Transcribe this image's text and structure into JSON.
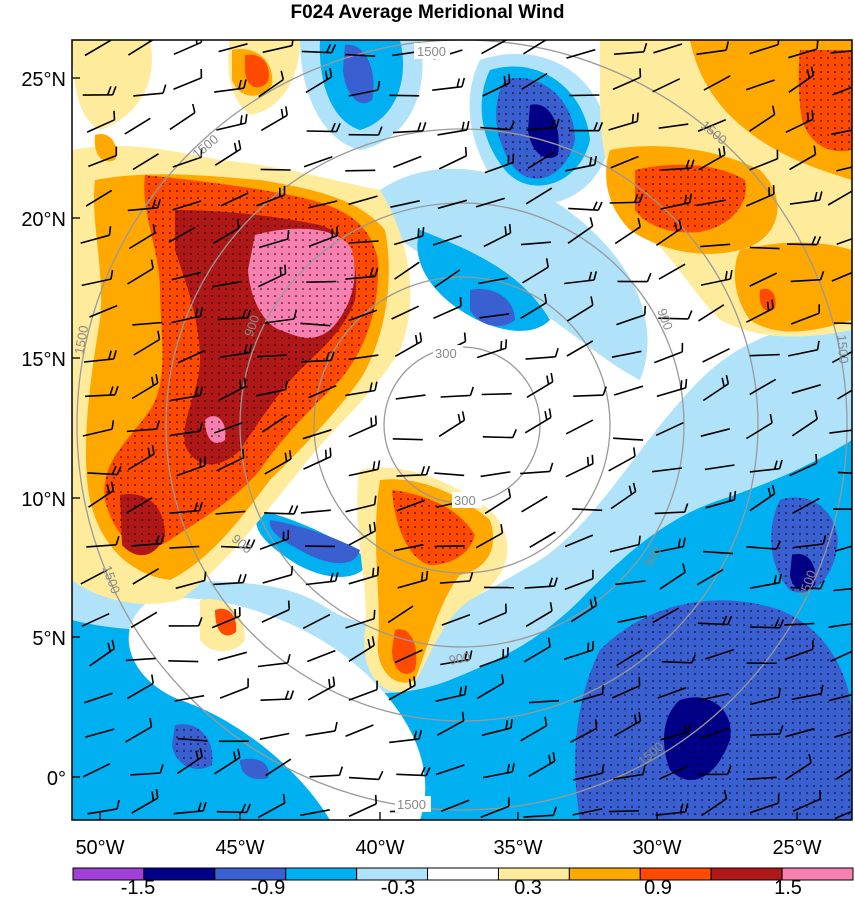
{
  "title": "F024 Average Meridional Wind",
  "lat_labels": [
    "0°",
    "5°N",
    "10°N",
    "15°N",
    "20°N",
    "25°N"
  ],
  "lon_labels": [
    "50°W",
    "45°W",
    "40°W",
    "35°W",
    "30°W",
    "25°W"
  ],
  "colorbar": {
    "colors": [
      "#a040d8",
      "#00008b",
      "#3a5fd0",
      "#00b0f0",
      "#b0e2fa",
      "#ffffff",
      "#ffeb9c",
      "#ffa800",
      "#ff4a00",
      "#b01818",
      "#f880b0"
    ],
    "tick_labels": [
      "-1.5",
      "-0.9",
      "-0.3",
      "0.3",
      "0.9",
      "1.5"
    ]
  },
  "range_rings": {
    "labels": [
      "300",
      "900",
      "1500"
    ]
  }
}
